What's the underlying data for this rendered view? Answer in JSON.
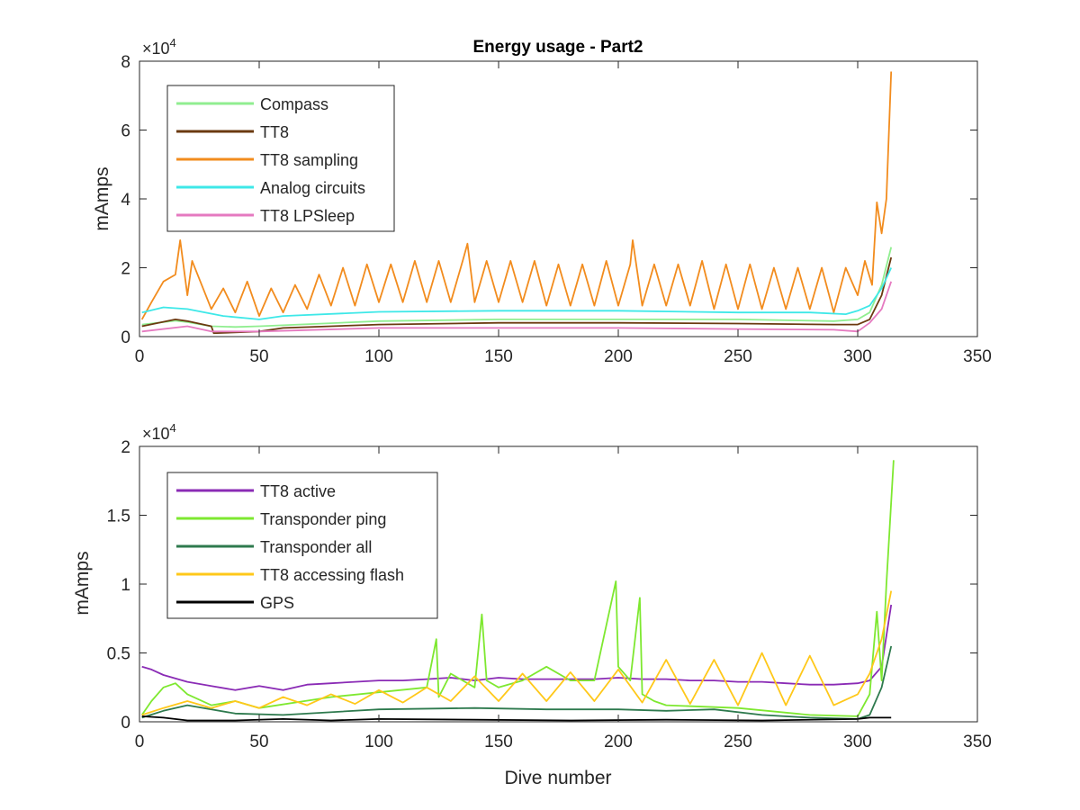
{
  "chart_data": [
    {
      "type": "line",
      "title": "Energy usage - Part2",
      "xlabel": "",
      "ylabel": "mAmps",
      "exponent_label": "× 10^4",
      "exponent_base": "×10",
      "exponent_power": "4",
      "xlim": [
        0,
        350
      ],
      "ylim": [
        0,
        80000
      ],
      "xticks": [
        "0",
        "50",
        "100",
        "150",
        "200",
        "250",
        "300",
        "350"
      ],
      "yticks": [
        "0",
        "2",
        "4",
        "6",
        "8"
      ],
      "legend_position": "top-left",
      "series": [
        {
          "name": "Compass",
          "color": "#90ee90",
          "x": [
            1,
            15,
            20,
            30,
            40,
            50,
            100,
            150,
            200,
            250,
            290,
            300,
            305,
            310,
            314
          ],
          "y": [
            3500,
            4600,
            4200,
            3000,
            2800,
            3000,
            4500,
            5000,
            5000,
            5000,
            4500,
            5000,
            7000,
            15000,
            26000
          ]
        },
        {
          "name": "TT8",
          "color": "#6b3a10",
          "x": [
            1,
            15,
            20,
            30,
            31,
            50,
            60,
            100,
            150,
            200,
            250,
            290,
            300,
            305,
            310,
            314
          ],
          "y": [
            3000,
            5000,
            4500,
            3000,
            1000,
            1500,
            2500,
            3500,
            4000,
            4000,
            3800,
            3500,
            3500,
            5000,
            12000,
            23000
          ]
        },
        {
          "name": "TT8 sampling",
          "color": "#f28c1e",
          "x": [
            1,
            5,
            10,
            15,
            17,
            20,
            22,
            30,
            35,
            40,
            45,
            50,
            55,
            60,
            65,
            70,
            75,
            80,
            85,
            90,
            95,
            100,
            105,
            110,
            115,
            120,
            125,
            130,
            135,
            137,
            140,
            145,
            150,
            155,
            160,
            165,
            170,
            175,
            180,
            185,
            190,
            195,
            200,
            205,
            206,
            210,
            215,
            220,
            225,
            230,
            235,
            240,
            245,
            250,
            255,
            260,
            265,
            270,
            275,
            280,
            285,
            290,
            295,
            300,
            303,
            306,
            308,
            310,
            312,
            314
          ],
          "y": [
            5000,
            10000,
            16000,
            18000,
            28000,
            12000,
            22000,
            8000,
            14000,
            7000,
            16000,
            6000,
            14000,
            7000,
            15000,
            8000,
            18000,
            9000,
            20000,
            9000,
            21000,
            10000,
            21000,
            10000,
            22000,
            10000,
            22000,
            10000,
            22000,
            27000,
            10000,
            22000,
            10000,
            22000,
            10000,
            22000,
            9000,
            21000,
            9000,
            21000,
            9000,
            22000,
            9000,
            21000,
            28000,
            9000,
            21000,
            9000,
            21000,
            9000,
            22000,
            8000,
            21000,
            8000,
            21000,
            8000,
            20000,
            8000,
            20000,
            8000,
            20000,
            7000,
            20000,
            12000,
            22000,
            15000,
            39000,
            30000,
            40000,
            77000
          ]
        },
        {
          "name": "Analog circuits",
          "color": "#3ee8e8",
          "x": [
            1,
            10,
            20,
            35,
            50,
            60,
            100,
            150,
            200,
            250,
            280,
            295,
            300,
            305,
            310,
            314
          ],
          "y": [
            7000,
            8500,
            8000,
            6000,
            5000,
            6000,
            7200,
            7500,
            7500,
            7000,
            7000,
            6500,
            7500,
            9000,
            14000,
            20000
          ]
        },
        {
          "name": "TT8 LPSleep",
          "color": "#e57ac0",
          "x": [
            1,
            20,
            30,
            50,
            100,
            150,
            200,
            250,
            290,
            300,
            305,
            310,
            314
          ],
          "y": [
            1500,
            3000,
            1500,
            1500,
            2500,
            2500,
            2500,
            2200,
            2000,
            1500,
            4000,
            8000,
            16000
          ]
        }
      ]
    },
    {
      "type": "line",
      "title": "",
      "xlabel": "Dive number",
      "ylabel": "mAmps",
      "exponent_label": "× 10^4",
      "exponent_base": "×10",
      "exponent_power": "4",
      "xlim": [
        0,
        350
      ],
      "ylim": [
        0,
        20000
      ],
      "xticks": [
        "0",
        "50",
        "100",
        "150",
        "200",
        "250",
        "300",
        "350"
      ],
      "yticks": [
        "0",
        "0.5",
        "1",
        "1.5",
        "2"
      ],
      "legend_position": "top-left",
      "series": [
        {
          "name": "TT8 active",
          "color": "#8a2bb5",
          "x": [
            1,
            5,
            10,
            20,
            30,
            40,
            50,
            60,
            70,
            80,
            90,
            100,
            110,
            120,
            130,
            140,
            150,
            160,
            170,
            180,
            190,
            200,
            210,
            220,
            230,
            240,
            250,
            260,
            270,
            280,
            290,
            300,
            305,
            310,
            314
          ],
          "y": [
            4000,
            3800,
            3400,
            2900,
            2600,
            2300,
            2600,
            2300,
            2700,
            2800,
            2900,
            3000,
            3000,
            3100,
            3200,
            3000,
            3200,
            3100,
            3100,
            3100,
            3100,
            3200,
            3100,
            3100,
            3000,
            3000,
            2900,
            2900,
            2800,
            2700,
            2700,
            2800,
            3000,
            4000,
            8500
          ]
        },
        {
          "name": "Transponder ping",
          "color": "#7ee830",
          "x": [
            1,
            5,
            10,
            15,
            20,
            30,
            40,
            50,
            80,
            120,
            124,
            125,
            130,
            140,
            143,
            145,
            150,
            160,
            170,
            180,
            190,
            199,
            200,
            205,
            209,
            210,
            215,
            220,
            250,
            280,
            300,
            305,
            308,
            310,
            312,
            315
          ],
          "y": [
            500,
            1500,
            2500,
            2800,
            2000,
            1200,
            1500,
            1000,
            1800,
            2500,
            6000,
            1800,
            3500,
            2500,
            7800,
            3000,
            2500,
            3000,
            4000,
            3000,
            3000,
            10200,
            4000,
            3000,
            9000,
            2000,
            1500,
            1200,
            1000,
            500,
            400,
            2000,
            8000,
            3000,
            10000,
            19000
          ]
        },
        {
          "name": "Transponder all",
          "color": "#2e7a4e",
          "x": [
            1,
            10,
            20,
            40,
            60,
            100,
            140,
            170,
            180,
            200,
            220,
            240,
            260,
            280,
            300,
            305,
            310,
            314
          ],
          "y": [
            300,
            800,
            1200,
            600,
            500,
            900,
            1000,
            900,
            900,
            900,
            800,
            900,
            500,
            300,
            200,
            500,
            2500,
            5500
          ]
        },
        {
          "name": "TT8 accessing flash",
          "color": "#ffc81a",
          "x": [
            1,
            10,
            20,
            30,
            40,
            50,
            60,
            70,
            80,
            90,
            100,
            110,
            120,
            130,
            140,
            150,
            160,
            170,
            180,
            190,
            200,
            210,
            220,
            230,
            240,
            250,
            260,
            270,
            280,
            290,
            300,
            305,
            310,
            314
          ],
          "y": [
            500,
            1000,
            1500,
            1000,
            1500,
            1000,
            1800,
            1200,
            2000,
            1300,
            2300,
            1400,
            2500,
            1500,
            3300,
            1500,
            3500,
            1500,
            3600,
            1500,
            3800,
            1400,
            4500,
            1300,
            4500,
            1200,
            5000,
            1200,
            4800,
            1200,
            2000,
            3500,
            6000,
            9500
          ]
        },
        {
          "name": "GPS",
          "color": "#000000",
          "x": [
            1,
            10,
            20,
            40,
            60,
            80,
            100,
            140,
            180,
            220,
            260,
            300,
            305,
            314
          ],
          "y": [
            400,
            300,
            100,
            100,
            200,
            100,
            200,
            150,
            100,
            150,
            100,
            200,
            300,
            300
          ]
        }
      ]
    }
  ]
}
